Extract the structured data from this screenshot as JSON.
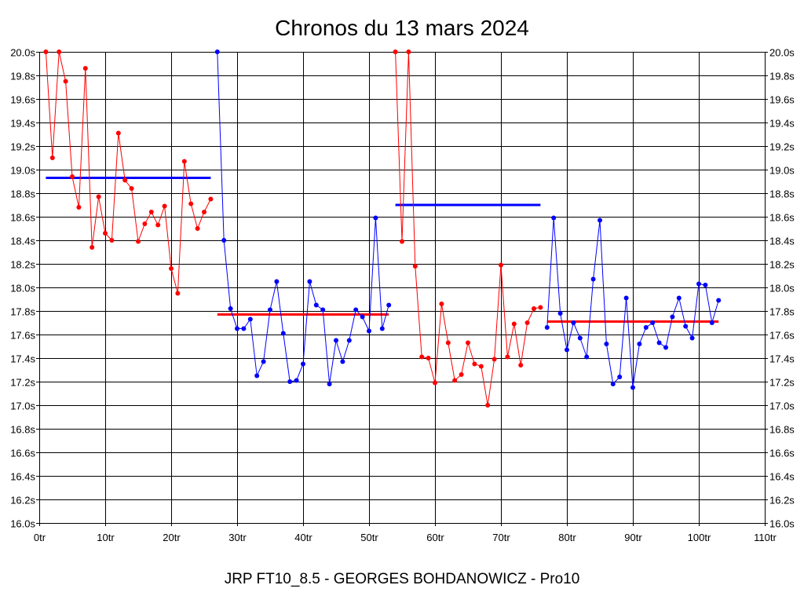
{
  "chart_data": {
    "type": "line",
    "title": "Chronos du 13 mars 2024",
    "subtitle": "JRP FT10_8.5 - GEORGES BOHDANOWICZ - Pro10",
    "xlim": [
      0,
      110
    ],
    "ylim": [
      16.0,
      20.0
    ],
    "x_ticks": [
      0,
      10,
      20,
      30,
      40,
      50,
      60,
      70,
      80,
      90,
      100,
      110
    ],
    "x_tick_labels": [
      "0tr",
      "10tr",
      "20tr",
      "30tr",
      "40tr",
      "50tr",
      "60tr",
      "70tr",
      "80tr",
      "90tr",
      "100tr",
      "110tr"
    ],
    "y_ticks": [
      16.0,
      16.2,
      16.4,
      16.6,
      16.8,
      17.0,
      17.2,
      17.4,
      17.6,
      17.8,
      18.0,
      18.2,
      18.4,
      18.6,
      18.8,
      19.0,
      19.2,
      19.4,
      19.6,
      19.8,
      20.0
    ],
    "y_tick_labels": [
      "16.0s",
      "16.2s",
      "16.4s",
      "16.6s",
      "16.8s",
      "17.0s",
      "17.2s",
      "17.4s",
      "17.6s",
      "17.8s",
      "18.0s",
      "18.2s",
      "18.4s",
      "18.6s",
      "18.8s",
      "19.0s",
      "19.2s",
      "19.4s",
      "19.6s",
      "19.8s",
      "20.0s"
    ],
    "grid": true,
    "series": [
      {
        "color": "#ff0000",
        "x": [
          1,
          2,
          3,
          4,
          5,
          6,
          7,
          8,
          9,
          10,
          11,
          12,
          13,
          14,
          15,
          16,
          17,
          18,
          19,
          20,
          21,
          22,
          23,
          24,
          25,
          26
        ],
        "y": [
          20.0,
          19.1,
          20.0,
          19.75,
          18.94,
          18.68,
          19.86,
          18.34,
          18.77,
          18.46,
          18.4,
          19.31,
          18.91,
          18.84,
          18.39,
          18.54,
          18.64,
          18.53,
          18.69,
          18.16,
          17.95,
          19.07,
          18.71,
          18.5,
          18.64,
          18.75
        ]
      },
      {
        "color": "#0000ff",
        "x": [
          27,
          28,
          29,
          30,
          31,
          32,
          33,
          34,
          35,
          36,
          37,
          38,
          39,
          40,
          41,
          42,
          43,
          44,
          45,
          46,
          47,
          48,
          49,
          50,
          51,
          52,
          53
        ],
        "y": [
          20.0,
          18.4,
          17.82,
          17.65,
          17.65,
          17.73,
          17.25,
          17.37,
          17.81,
          18.05,
          17.61,
          17.2,
          17.21,
          17.35,
          18.05,
          17.85,
          17.81,
          17.18,
          17.55,
          17.37,
          17.55,
          17.81,
          17.75,
          17.63,
          18.59,
          17.65,
          17.85
        ]
      },
      {
        "color": "#ff0000",
        "x": [
          54,
          55,
          56,
          57,
          58,
          59,
          60,
          61,
          62,
          63,
          64,
          65,
          66,
          67,
          68,
          69,
          70,
          71,
          72,
          73,
          74,
          75,
          76
        ],
        "y": [
          20.0,
          18.39,
          20.0,
          18.18,
          17.41,
          17.4,
          17.19,
          17.86,
          17.53,
          17.21,
          17.26,
          17.53,
          17.35,
          17.33,
          17.0,
          17.39,
          18.19,
          17.41,
          17.69,
          17.34,
          17.7,
          17.82,
          17.83
        ]
      },
      {
        "color": "#0000ff",
        "x": [
          77,
          78,
          79,
          80,
          81,
          82,
          83,
          84,
          85,
          86,
          87,
          88,
          89,
          90,
          91,
          92,
          93,
          94,
          95,
          96,
          97,
          98,
          99,
          100,
          101,
          102,
          103
        ],
        "y": [
          17.66,
          18.59,
          17.78,
          17.47,
          17.7,
          17.57,
          17.41,
          18.07,
          18.57,
          17.52,
          17.18,
          17.24,
          17.91,
          17.15,
          17.52,
          17.66,
          17.7,
          17.53,
          17.49,
          17.75,
          17.91,
          17.67,
          17.57,
          18.03,
          18.02,
          17.7,
          17.89
        ]
      }
    ],
    "averages": [
      {
        "color": "#0000ff",
        "x": [
          1,
          26
        ],
        "y": 18.93
      },
      {
        "color": "#ff0000",
        "x": [
          27,
          53
        ],
        "y": 17.77
      },
      {
        "color": "#0000ff",
        "x": [
          54,
          76
        ],
        "y": 18.7
      },
      {
        "color": "#ff0000",
        "x": [
          77,
          103
        ],
        "y": 17.71
      }
    ]
  }
}
